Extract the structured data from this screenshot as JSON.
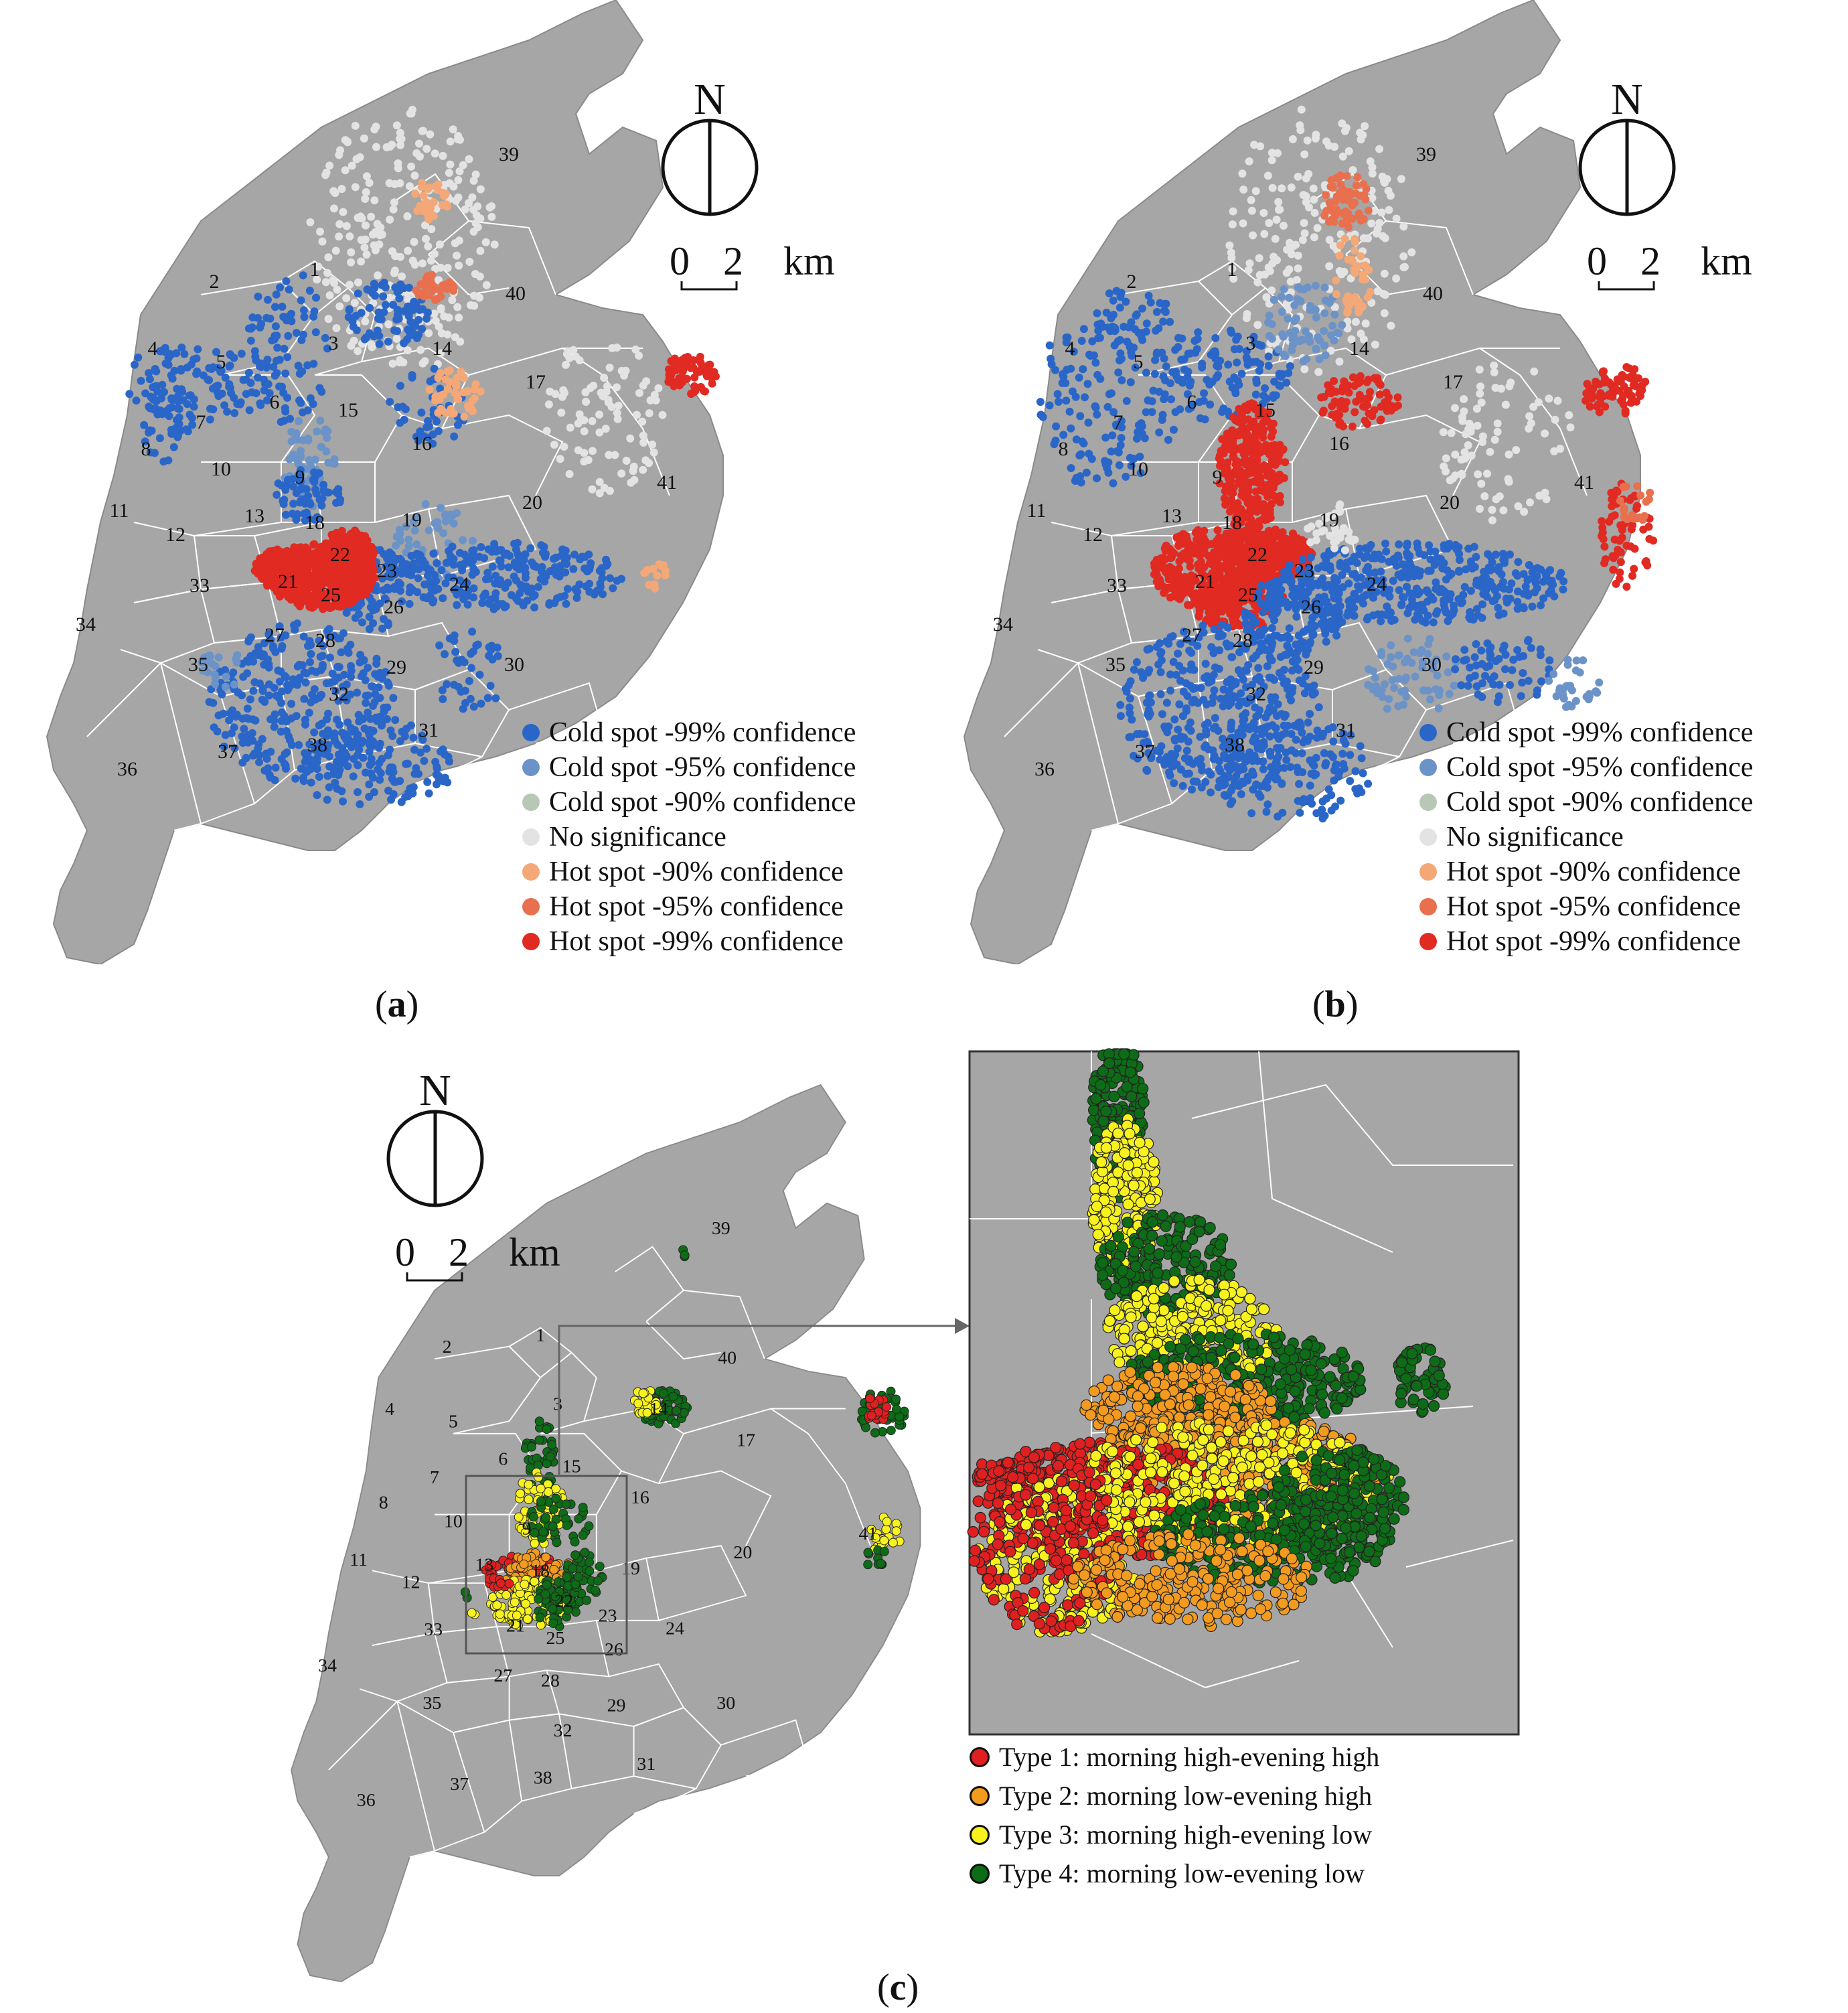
{
  "panels": {
    "a": {
      "caption_letter": "a"
    },
    "b": {
      "caption_letter": "b"
    },
    "c": {
      "caption_letter": "c"
    }
  },
  "compass": {
    "north": "N",
    "scale_zero": "0",
    "scale_two": "2",
    "scale_unit": "km"
  },
  "hotspot_legend": [
    {
      "label": "Cold spot -99% confidence",
      "color": "#2a66c8"
    },
    {
      "label": "Cold spot -95% confidence",
      "color": "#6c93c8"
    },
    {
      "label": "Cold spot -90% confidence",
      "color": "#b9c8b6"
    },
    {
      "label": "No significance",
      "color": "#e3e3e3"
    },
    {
      "label": "Hot spot -90% confidence",
      "color": "#f4a877"
    },
    {
      "label": "Hot spot -95% confidence",
      "color": "#e8704e"
    },
    {
      "label": "Hot spot -99% confidence",
      "color": "#e02a22"
    }
  ],
  "type_legend": [
    {
      "label": "Type 1:  morning high-evening high",
      "color": "#e02020"
    },
    {
      "label": "Type 2:  morning low-evening high",
      "color": "#f39b1f"
    },
    {
      "label": "Type 3:  morning high-evening low",
      "color": "#f7f21d"
    },
    {
      "label": "Type 4:  morning low-evening low",
      "color": "#0e6b17"
    }
  ],
  "district_labels": [
    "1",
    "2",
    "3",
    "4",
    "5",
    "6",
    "7",
    "8",
    "9",
    "10",
    "11",
    "12",
    "13",
    "14",
    "15",
    "16",
    "17",
    "18",
    "19",
    "20",
    "21",
    "22",
    "23",
    "24",
    "25",
    "26",
    "27",
    "28",
    "29",
    "30",
    "31",
    "32",
    "33",
    "34",
    "35",
    "36",
    "37",
    "38",
    "39",
    "40",
    "41"
  ],
  "colors": {
    "land": "#a6a6a6",
    "boundary": "#ffffff"
  }
}
